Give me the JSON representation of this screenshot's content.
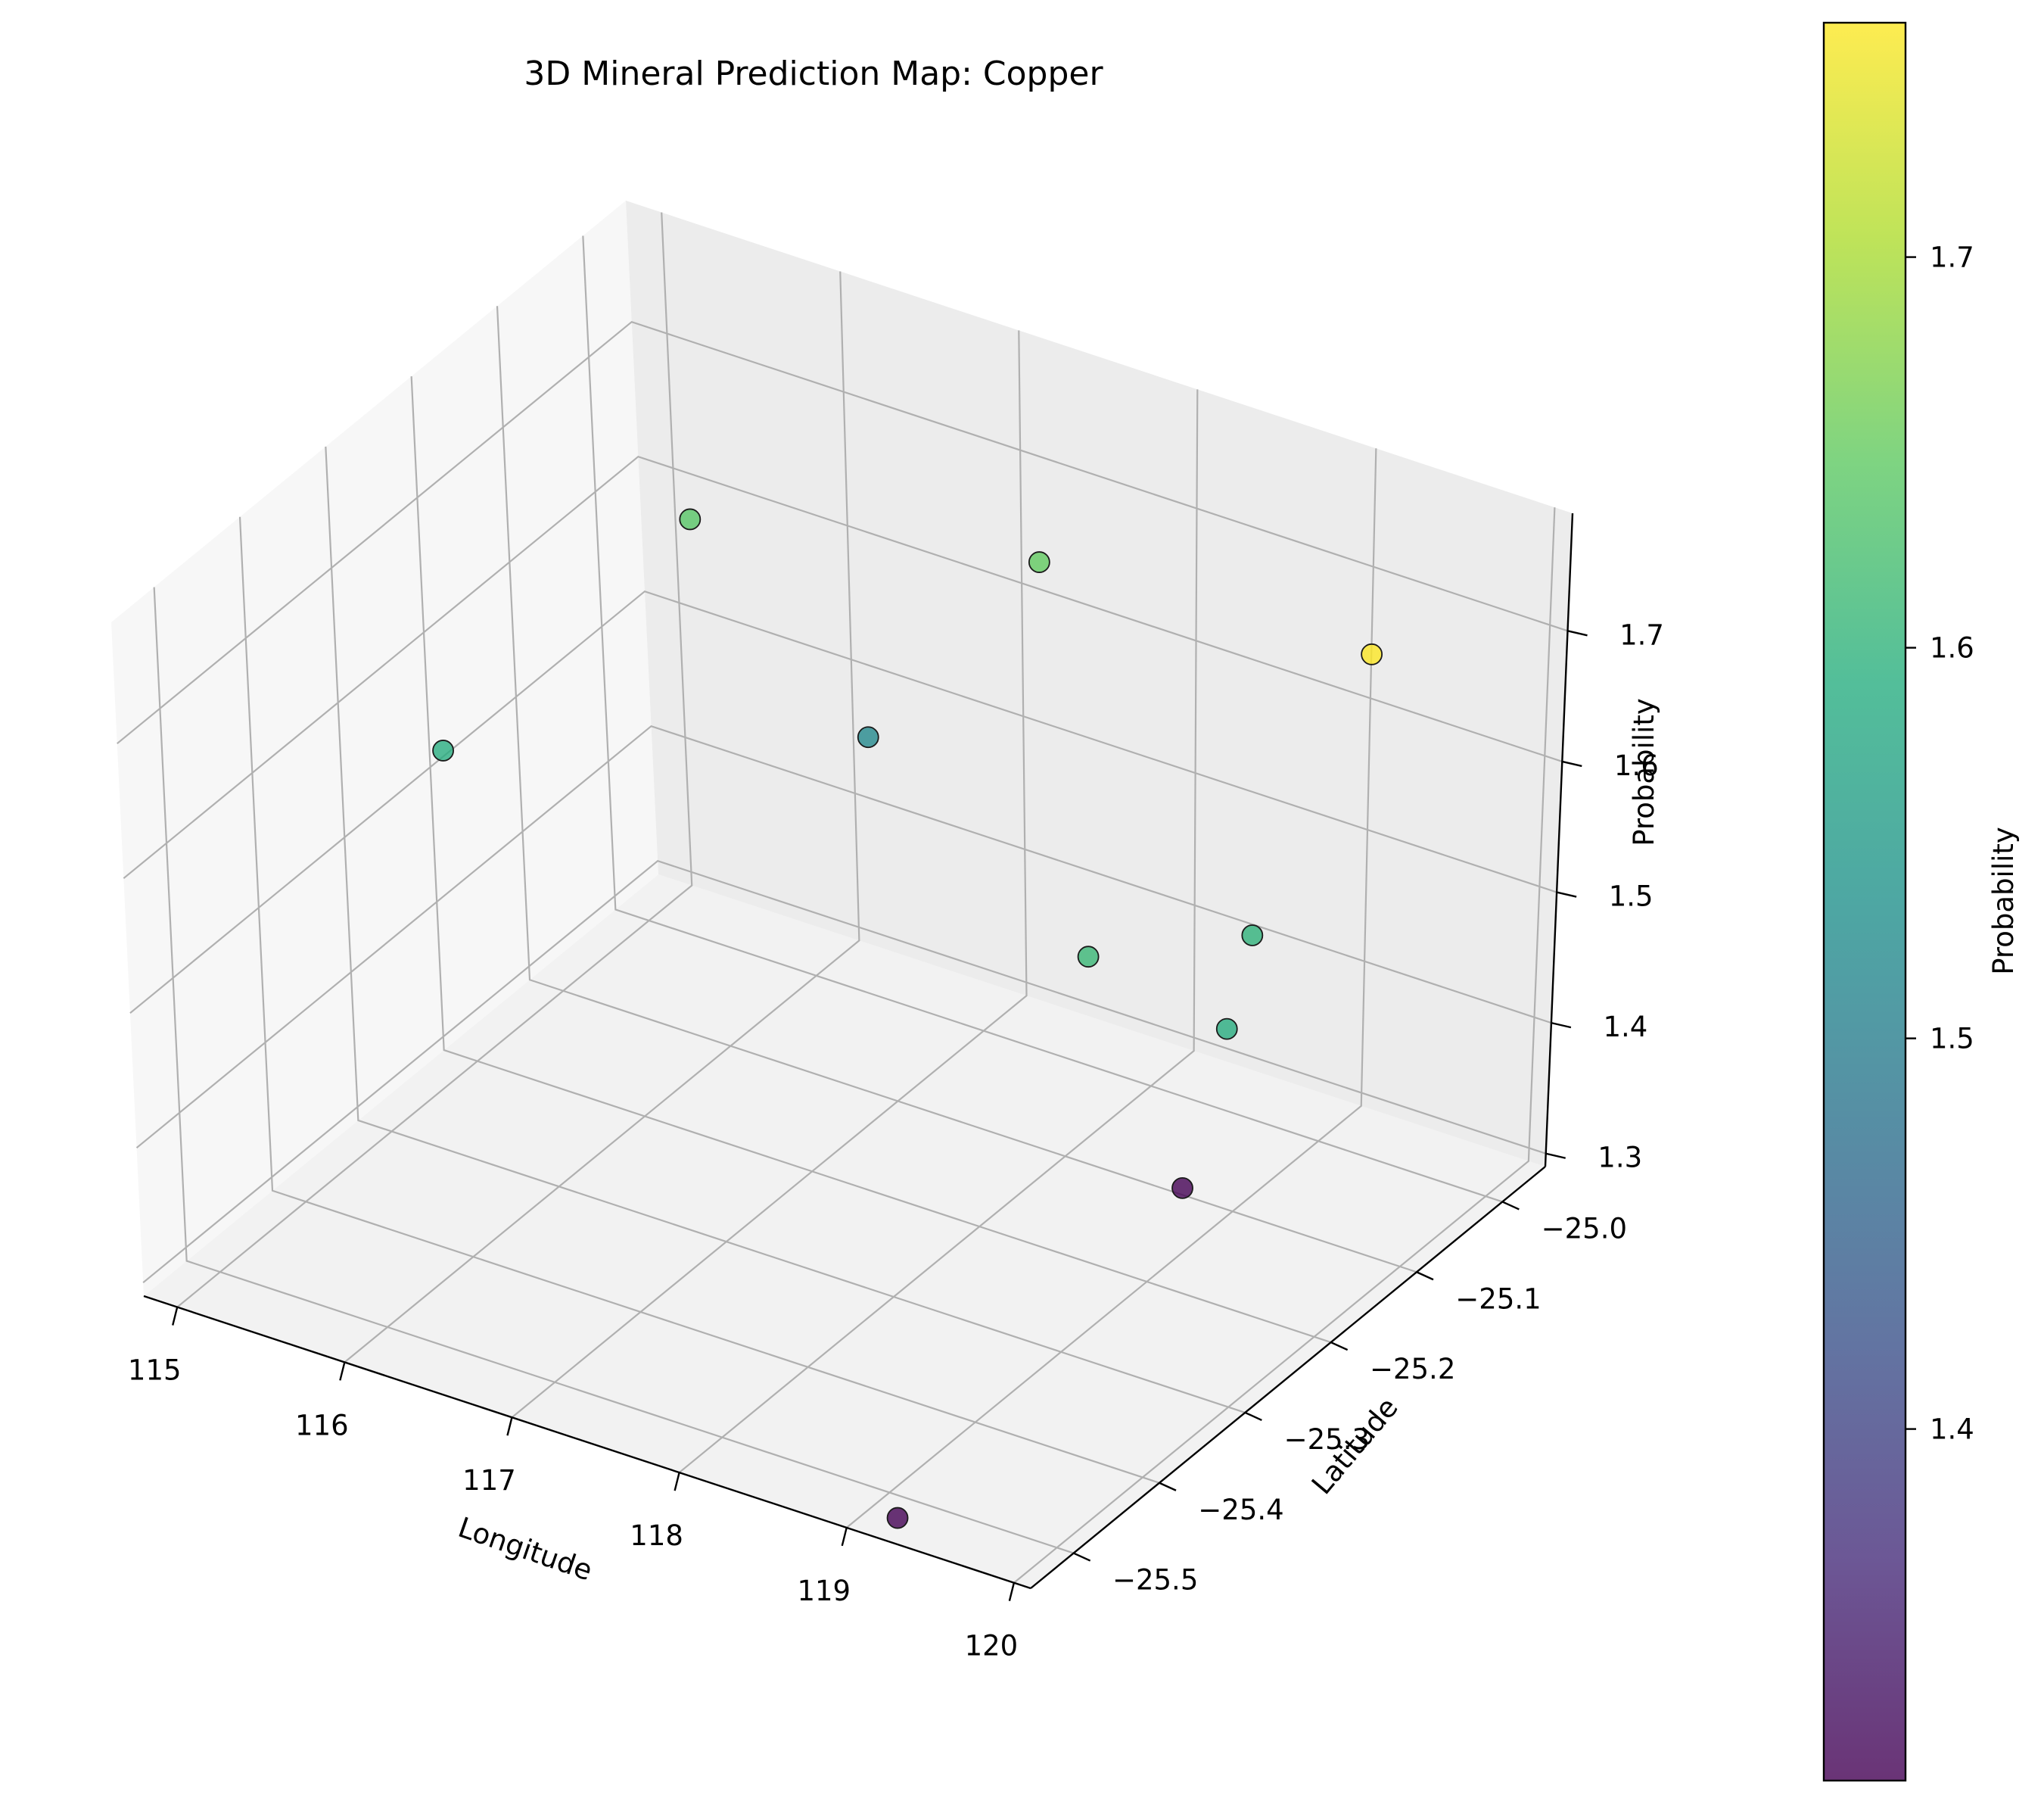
{
  "chart_data": {
    "type": "scatter",
    "projection": "3d",
    "title": "3D Mineral Prediction Map: Copper",
    "xlabel": "Longitude",
    "ylabel": "Latitude",
    "zlabel": "Probability",
    "xticks": [
      "115",
      "116",
      "117",
      "118",
      "119",
      "120"
    ],
    "yticks": [
      "−25.0",
      "−25.1",
      "−25.2",
      "−25.3",
      "−25.4",
      "−25.5"
    ],
    "zticks": [
      "1.3",
      "1.4",
      "1.5",
      "1.6",
      "1.7"
    ],
    "xlim": [
      114.8,
      120.1
    ],
    "ylim": [
      -25.55,
      -24.95
    ],
    "zlim": [
      1.29,
      1.79
    ],
    "grid": true,
    "colormap": "viridis",
    "colorbar": {
      "label": "Probability",
      "ticks": [
        "1.4",
        "1.5",
        "1.6",
        "1.7"
      ],
      "range": [
        1.31,
        1.76
      ]
    },
    "colors": {
      "viridis_low": "#440154",
      "viridis_mid": "#21918c",
      "viridis_high": "#fde725"
    },
    "points": [
      {
        "x": 115.6,
        "y": -25.05,
        "z": 1.64
      },
      {
        "x": 116.6,
        "y": -25.05,
        "z": 1.52
      },
      {
        "x": 117.3,
        "y": -24.99,
        "z": 1.65
      },
      {
        "x": 119.2,
        "y": -25.32,
        "z": 1.61
      },
      {
        "x": 119.7,
        "y": -25.23,
        "z": 1.6
      },
      {
        "x": 119.8,
        "y": -25.12,
        "z": 1.76
      },
      {
        "x": 120.0,
        "y": -25.32,
        "z": 1.59
      },
      {
        "x": 115.4,
        "y": -25.3,
        "z": 1.59
      },
      {
        "x": 118.8,
        "y": -25.12,
        "z": 1.31
      },
      {
        "x": 119.3,
        "y": -25.55,
        "z": 1.31
      }
    ]
  }
}
